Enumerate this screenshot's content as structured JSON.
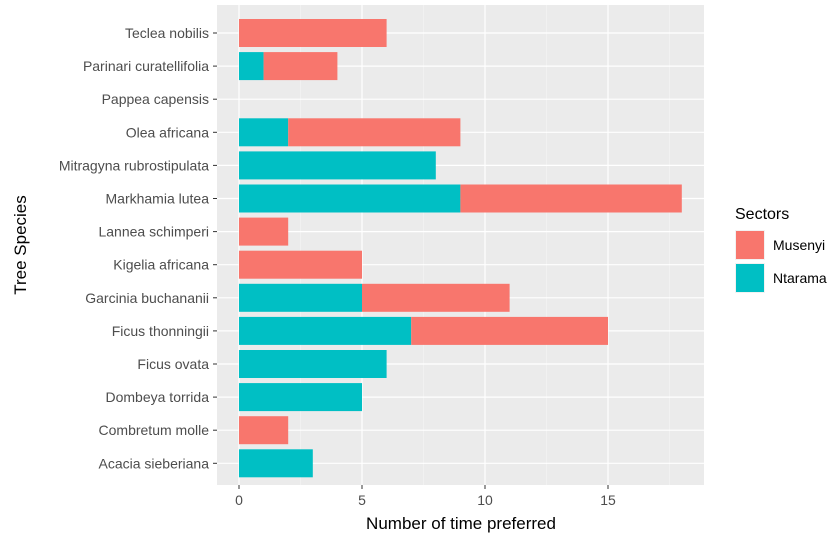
{
  "chart_data": {
    "type": "bar",
    "orientation": "horizontal",
    "stacked": true,
    "categories": [
      "Teclea nobilis",
      "Parinari curatellifolia",
      "Pappea capensis",
      "Olea africana",
      "Mitragyna rubrostipulata",
      "Markhamia lutea",
      "Lannea schimperi",
      "Kigelia africana",
      "Garcinia buchananii",
      "Ficus thonningii",
      "Ficus ovata",
      "Dombeya torrida",
      "Combretum molle",
      "Acacia sieberiana"
    ],
    "series": [
      {
        "name": "Musenyi",
        "color": "#F8766D",
        "values": [
          6,
          3,
          0,
          7,
          0,
          9,
          2,
          5,
          6,
          8,
          0,
          0,
          2,
          0
        ]
      },
      {
        "name": "Ntarama",
        "color": "#00BFC4",
        "values": [
          0,
          1,
          0,
          2,
          8,
          9,
          0,
          0,
          5,
          7,
          6,
          5,
          0,
          3
        ]
      }
    ],
    "xlabel": "Number of time preferred",
    "ylabel": "Tree Species",
    "xlim": [
      -1,
      18.7
    ],
    "xticks": [
      "0",
      "5",
      "10",
      "15"
    ],
    "legend": {
      "title": "Sectors",
      "position": "right"
    },
    "grid": true,
    "panel_background": "#EBEBEB"
  }
}
